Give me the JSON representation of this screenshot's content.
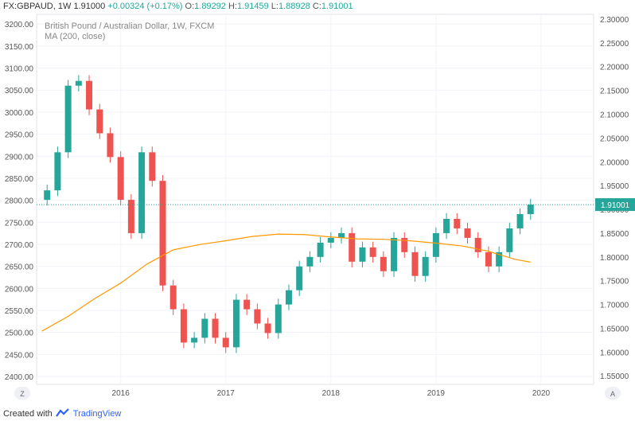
{
  "header": {
    "symbol": "FX:GBPAUD, 1W",
    "last": "1.91000",
    "change": "+0.00324 (+0.17%)",
    "o_label": "O:",
    "o": "1.89292",
    "h_label": "H:",
    "h": "1.91459",
    "l_label": "L:",
    "l": "1.88928",
    "c_label": "C:",
    "c": "1.91001"
  },
  "title": "British Pound / Australian Dollar, 1W, FXCM",
  "indicator": "MA (200, close)",
  "footer": {
    "created_with": "Created with",
    "brand": "TradingView"
  },
  "buttons": {
    "left": "Z",
    "right": "A"
  },
  "colors": {
    "up": "#26a69a",
    "down": "#ef5350",
    "ma": "#ff9800",
    "last_price": "#26a69a",
    "grid": "#f0f3fa",
    "axis_text": "#555"
  },
  "chart_data": {
    "type": "candlestick",
    "title": "British Pound / Australian Dollar, 1W, FXCM",
    "x_ticks": [
      "2016",
      "2017",
      "2018",
      "2019",
      "2020"
    ],
    "left_axis": {
      "ticks": [
        "3200.00",
        "3150.00",
        "3100.00",
        "3050.00",
        "3000.00",
        "2950.00",
        "2900.00",
        "2850.00",
        "2800.00",
        "2750.00",
        "2700.00",
        "2650.00",
        "2600.00",
        "2550.00",
        "2500.00",
        "2450.00",
        "2400.00"
      ],
      "range": [
        2382,
        3222
      ]
    },
    "right_axis": {
      "ticks": [
        "2.30000",
        "2.25000",
        "2.20000",
        "2.15000",
        "2.10000",
        "2.05000",
        "2.00000",
        "1.95000",
        "1.90000",
        "1.85000",
        "1.80000",
        "1.75000",
        "1.70000",
        "1.65000",
        "1.60000",
        "1.55000"
      ],
      "range": [
        1.532,
        2.31
      ]
    },
    "last_price_label": "1.91001",
    "last_price": 1.91001,
    "series": [
      {
        "name": "MA (200, close)",
        "x": [
          2015.25,
          2015.5,
          2015.75,
          2016.0,
          2016.25,
          2016.5,
          2016.75,
          2017.0,
          2017.25,
          2017.5,
          2017.75,
          2018.0,
          2018.25,
          2018.5,
          2018.75,
          2019.0,
          2019.25,
          2019.5,
          2019.75,
          2019.9
        ],
        "values": [
          1.644,
          1.675,
          1.712,
          1.745,
          1.785,
          1.815,
          1.826,
          1.834,
          1.843,
          1.848,
          1.847,
          1.842,
          1.838,
          1.837,
          1.834,
          1.829,
          1.823,
          1.812,
          1.795,
          1.789
        ]
      },
      {
        "name": "GBPAUD weekly close",
        "x": [
          2015.2,
          2015.3,
          2015.4,
          2015.5,
          2015.6,
          2015.7,
          2015.8,
          2015.9,
          2016.0,
          2016.1,
          2016.2,
          2016.3,
          2016.4,
          2016.5,
          2016.6,
          2016.7,
          2016.8,
          2016.9,
          2017.0,
          2017.1,
          2017.2,
          2017.3,
          2017.4,
          2017.5,
          2017.6,
          2017.7,
          2017.8,
          2017.9,
          2018.0,
          2018.1,
          2018.2,
          2018.3,
          2018.4,
          2018.5,
          2018.6,
          2018.7,
          2018.8,
          2018.9,
          2019.0,
          2019.1,
          2019.2,
          2019.3,
          2019.4,
          2019.5,
          2019.6,
          2019.7,
          2019.8,
          2019.9
        ],
        "values": [
          1.92,
          1.94,
          2.02,
          2.16,
          2.17,
          2.11,
          2.06,
          2.01,
          1.92,
          1.85,
          2.02,
          1.96,
          1.74,
          1.69,
          1.62,
          1.63,
          1.67,
          1.63,
          1.61,
          1.71,
          1.69,
          1.66,
          1.64,
          1.7,
          1.73,
          1.78,
          1.8,
          1.83,
          1.84,
          1.85,
          1.79,
          1.82,
          1.8,
          1.77,
          1.84,
          1.81,
          1.76,
          1.8,
          1.85,
          1.88,
          1.86,
          1.84,
          1.81,
          1.78,
          1.81,
          1.86,
          1.89,
          1.91
        ]
      }
    ]
  }
}
